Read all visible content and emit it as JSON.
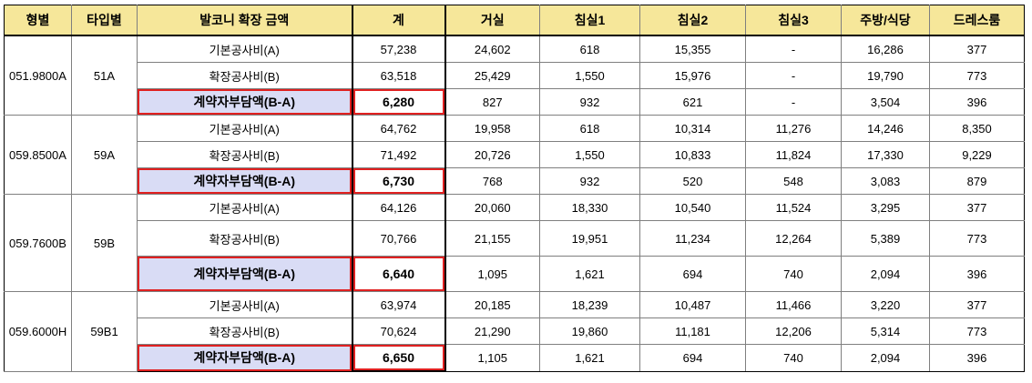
{
  "headers": [
    "형별",
    "타입별",
    "발코니 확장 금액",
    "계",
    "거실",
    "침실1",
    "침실2",
    "침실3",
    "주방/식당",
    "드레스룸"
  ],
  "groups": [
    {
      "type_code": "051.9800A",
      "type_name": "51A",
      "rows": [
        {
          "label": "기본공사비(A)",
          "total": "57,238",
          "living": "24,602",
          "bed1": "618",
          "bed2": "15,355",
          "bed3": "-",
          "kitchen": "16,286",
          "dress": "377"
        },
        {
          "label": "확장공사비(B)",
          "total": "63,518",
          "living": "25,429",
          "bed1": "1,550",
          "bed2": "15,976",
          "bed3": "-",
          "kitchen": "19,790",
          "dress": "773"
        },
        {
          "label": "계약자부담액(B-A)",
          "total": "6,280",
          "living": "827",
          "bed1": "932",
          "bed2": "621",
          "bed3": "-",
          "kitchen": "3,504",
          "dress": "396"
        }
      ]
    },
    {
      "type_code": "059.8500A",
      "type_name": "59A",
      "rows": [
        {
          "label": "기본공사비(A)",
          "total": "64,762",
          "living": "19,958",
          "bed1": "618",
          "bed2": "10,314",
          "bed3": "11,276",
          "kitchen": "14,246",
          "dress": "8,350"
        },
        {
          "label": "확장공사비(B)",
          "total": "71,492",
          "living": "20,726",
          "bed1": "1,550",
          "bed2": "10,833",
          "bed3": "11,824",
          "kitchen": "17,330",
          "dress": "9,229"
        },
        {
          "label": "계약자부담액(B-A)",
          "total": "6,730",
          "living": "768",
          "bed1": "932",
          "bed2": "520",
          "bed3": "548",
          "kitchen": "3,083",
          "dress": "879"
        }
      ]
    },
    {
      "type_code": "059.7600B",
      "type_name": "59B",
      "rows": [
        {
          "label": "기본공사비(A)",
          "total": "64,126",
          "living": "20,060",
          "bed1": "18,330",
          "bed2": "10,540",
          "bed3": "11,524",
          "kitchen": "3,295",
          "dress": "377"
        },
        {
          "label": "확장공사비(B)",
          "total": "70,766",
          "living": "21,155",
          "bed1": "19,951",
          "bed2": "11,234",
          "bed3": "12,264",
          "kitchen": "5,389",
          "dress": "773"
        },
        {
          "label": "계약자부담액(B-A)",
          "total": "6,640",
          "living": "1,095",
          "bed1": "1,621",
          "bed2": "694",
          "bed3": "740",
          "kitchen": "2,094",
          "dress": "396"
        }
      ]
    },
    {
      "type_code": "059.6000H",
      "type_name": "59B1",
      "rows": [
        {
          "label": "기본공사비(A)",
          "total": "63,974",
          "living": "20,185",
          "bed1": "18,239",
          "bed2": "10,487",
          "bed3": "11,466",
          "kitchen": "3,220",
          "dress": "377"
        },
        {
          "label": "확장공사비(B)",
          "total": "70,624",
          "living": "21,290",
          "bed1": "19,860",
          "bed2": "11,181",
          "bed3": "12,206",
          "kitchen": "5,314",
          "dress": "773"
        },
        {
          "label": "계약자부담액(B-A)",
          "total": "6,650",
          "living": "1,105",
          "bed1": "1,621",
          "bed2": "694",
          "bed3": "740",
          "kitchen": "2,094",
          "dress": "396"
        }
      ]
    }
  ],
  "colors": {
    "header_bg": "#f6e79a",
    "highlight_bg": "#d9dcf5",
    "highlight_border": "#e02020"
  }
}
